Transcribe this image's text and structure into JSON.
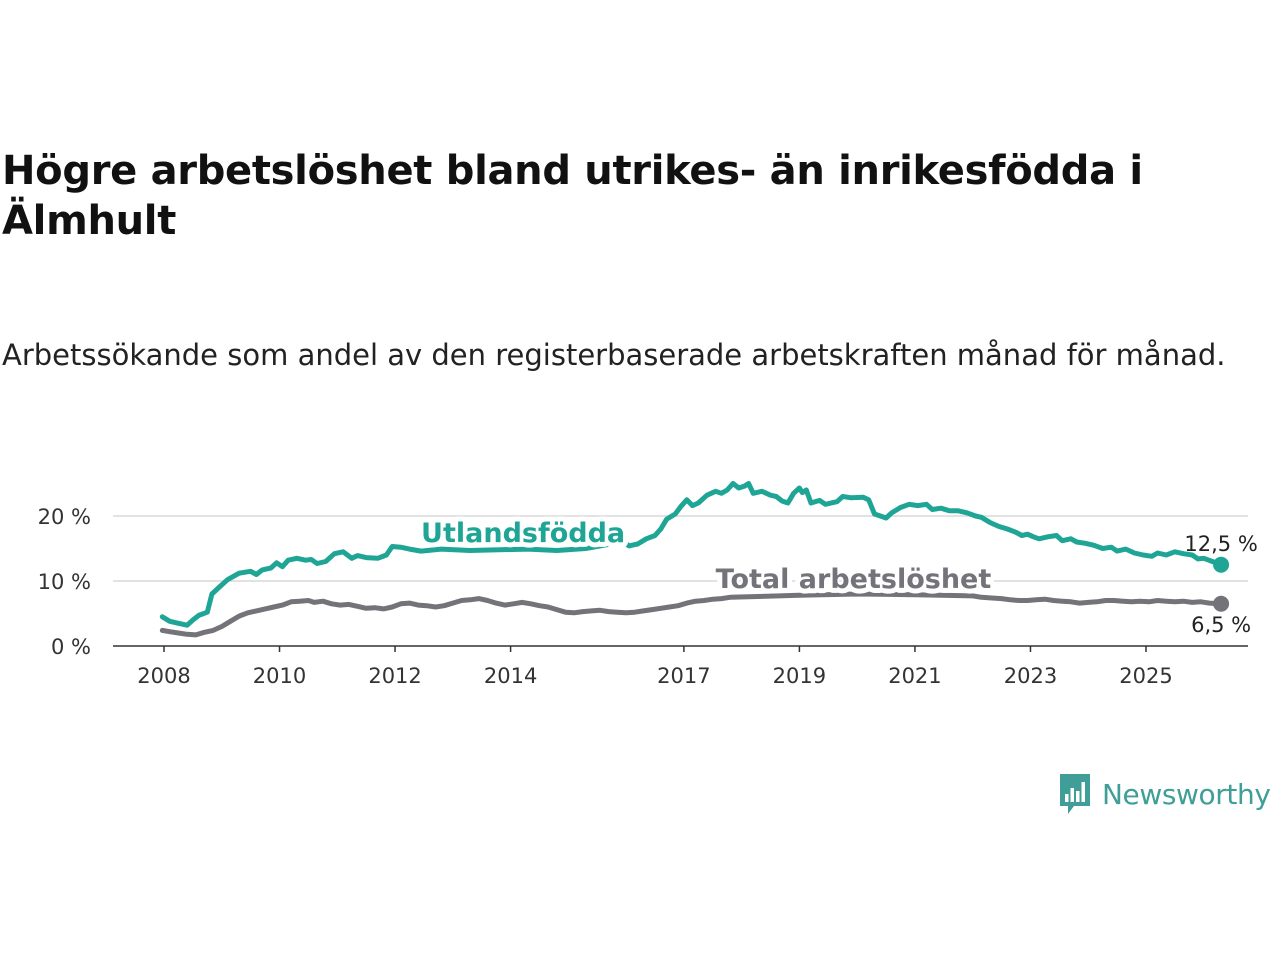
{
  "title": "Högre arbetslöshet bland utrikes- än inrikesfödda i Älmhult",
  "subtitle": "Arbetssökande som andel av den registerbaserade arbetskraften månad för månad.",
  "logo": {
    "text": "Newsworthy",
    "icon": "newsworthy-bar-chart-icon",
    "color": "#3f9e97"
  },
  "chart_data": {
    "type": "line",
    "ylim": [
      0,
      25
    ],
    "xlim": [
      2007.7,
      2026.0
    ],
    "y_ticks": [
      {
        "value": 0,
        "label": "0 %"
      },
      {
        "value": 10,
        "label": "10 %"
      },
      {
        "value": 20,
        "label": "20 %"
      }
    ],
    "x_ticks": [
      {
        "value": 2008,
        "label": "2008"
      },
      {
        "value": 2010,
        "label": "2010"
      },
      {
        "value": 2012,
        "label": "2012"
      },
      {
        "value": 2014,
        "label": "2014"
      },
      {
        "value": 2017,
        "label": "2017"
      },
      {
        "value": 2019,
        "label": "2019"
      },
      {
        "value": 2021,
        "label": "2021"
      },
      {
        "value": 2023,
        "label": "2023"
      },
      {
        "value": 2025,
        "label": "2025"
      }
    ],
    "grid": true,
    "series": [
      {
        "name": "Utlandsfödda",
        "color": "#1fa596",
        "end_label": "12,5 %",
        "points": [
          [
            2007.97,
            4.5
          ],
          [
            2008.1,
            3.8
          ],
          [
            2008.25,
            3.5
          ],
          [
            2008.4,
            3.2
          ],
          [
            2008.5,
            4.0
          ],
          [
            2008.6,
            4.7
          ],
          [
            2008.75,
            5.2
          ],
          [
            2008.83,
            8.0
          ],
          [
            2008.95,
            9.0
          ],
          [
            2009.1,
            10.2
          ],
          [
            2009.3,
            11.2
          ],
          [
            2009.5,
            11.5
          ],
          [
            2009.6,
            11.0
          ],
          [
            2009.7,
            11.7
          ],
          [
            2009.85,
            12.0
          ],
          [
            2009.95,
            12.8
          ],
          [
            2010.05,
            12.2
          ],
          [
            2010.15,
            13.2
          ],
          [
            2010.3,
            13.5
          ],
          [
            2010.45,
            13.2
          ],
          [
            2010.55,
            13.3
          ],
          [
            2010.65,
            12.7
          ],
          [
            2010.8,
            13.0
          ],
          [
            2010.95,
            14.2
          ],
          [
            2011.1,
            14.5
          ],
          [
            2011.25,
            13.5
          ],
          [
            2011.35,
            13.9
          ],
          [
            2011.5,
            13.6
          ],
          [
            2011.7,
            13.5
          ],
          [
            2011.85,
            14.0
          ],
          [
            2011.95,
            15.3
          ],
          [
            2012.1,
            15.2
          ],
          [
            2012.25,
            14.9
          ],
          [
            2012.45,
            14.6
          ],
          [
            2012.8,
            14.9
          ],
          [
            2013.3,
            14.7
          ],
          [
            2013.8,
            14.8
          ],
          [
            2014.3,
            14.9
          ],
          [
            2014.8,
            14.7
          ],
          [
            2015.3,
            15.0
          ],
          [
            2015.8,
            15.8
          ],
          [
            2015.95,
            16.1
          ],
          [
            2016.05,
            15.4
          ],
          [
            2016.2,
            15.7
          ],
          [
            2016.35,
            16.5
          ],
          [
            2016.5,
            17.0
          ],
          [
            2016.6,
            18.0
          ],
          [
            2016.7,
            19.5
          ],
          [
            2016.85,
            20.3
          ],
          [
            2016.95,
            21.5
          ],
          [
            2017.05,
            22.5
          ],
          [
            2017.15,
            21.6
          ],
          [
            2017.25,
            22.0
          ],
          [
            2017.4,
            23.2
          ],
          [
            2017.55,
            23.8
          ],
          [
            2017.65,
            23.5
          ],
          [
            2017.75,
            24.0
          ],
          [
            2017.85,
            25.0
          ],
          [
            2017.95,
            24.3
          ],
          [
            2018.05,
            24.6
          ],
          [
            2018.12,
            25.0
          ],
          [
            2018.2,
            23.5
          ],
          [
            2018.35,
            23.8
          ],
          [
            2018.5,
            23.2
          ],
          [
            2018.6,
            23.0
          ],
          [
            2018.7,
            22.3
          ],
          [
            2018.8,
            22.0
          ],
          [
            2018.9,
            23.5
          ],
          [
            2019.0,
            24.3
          ],
          [
            2019.05,
            23.6
          ],
          [
            2019.12,
            24.0
          ],
          [
            2019.2,
            22.0
          ],
          [
            2019.35,
            22.4
          ],
          [
            2019.45,
            21.8
          ],
          [
            2019.65,
            22.2
          ],
          [
            2019.75,
            23.0
          ],
          [
            2019.9,
            22.8
          ],
          [
            2020.1,
            22.9
          ],
          [
            2020.2,
            22.5
          ],
          [
            2020.3,
            20.3
          ],
          [
            2020.4,
            20.0
          ],
          [
            2020.5,
            19.7
          ],
          [
            2020.6,
            20.5
          ],
          [
            2020.75,
            21.3
          ],
          [
            2020.9,
            21.8
          ],
          [
            2021.05,
            21.6
          ],
          [
            2021.2,
            21.8
          ],
          [
            2021.3,
            21.0
          ],
          [
            2021.45,
            21.2
          ],
          [
            2021.6,
            20.8
          ],
          [
            2021.75,
            20.8
          ],
          [
            2021.9,
            20.5
          ],
          [
            2022.05,
            20.0
          ],
          [
            2022.15,
            19.8
          ],
          [
            2022.3,
            19.0
          ],
          [
            2022.45,
            18.4
          ],
          [
            2022.6,
            18.0
          ],
          [
            2022.75,
            17.5
          ],
          [
            2022.85,
            17.0
          ],
          [
            2022.95,
            17.2
          ],
          [
            2023.05,
            16.8
          ],
          [
            2023.15,
            16.5
          ],
          [
            2023.3,
            16.8
          ],
          [
            2023.45,
            17.0
          ],
          [
            2023.55,
            16.2
          ],
          [
            2023.7,
            16.5
          ],
          [
            2023.8,
            16.0
          ],
          [
            2023.95,
            15.8
          ],
          [
            2024.1,
            15.5
          ],
          [
            2024.25,
            15.0
          ],
          [
            2024.4,
            15.2
          ],
          [
            2024.5,
            14.6
          ],
          [
            2024.65,
            14.9
          ],
          [
            2024.8,
            14.3
          ],
          [
            2024.95,
            14.0
          ],
          [
            2025.1,
            13.8
          ],
          [
            2025.2,
            14.3
          ],
          [
            2025.35,
            14.0
          ],
          [
            2025.5,
            14.5
          ],
          [
            2025.65,
            14.2
          ],
          [
            2025.8,
            14.0
          ],
          [
            2025.9,
            13.4
          ],
          [
            2026.0,
            13.5
          ],
          [
            2026.15,
            13.0
          ],
          [
            2026.3,
            12.5
          ]
        ],
        "label": {
          "text": "Utlandsfödda",
          "x": 2012.45,
          "y": 16.0
        }
      },
      {
        "name": "Total arbetslöshet",
        "color": "#74737a",
        "end_label": "6,5 %",
        "points": [
          [
            2007.97,
            2.4
          ],
          [
            2008.1,
            2.2
          ],
          [
            2008.25,
            2.0
          ],
          [
            2008.4,
            1.8
          ],
          [
            2008.55,
            1.7
          ],
          [
            2008.7,
            2.1
          ],
          [
            2008.85,
            2.4
          ],
          [
            2009.0,
            3.0
          ],
          [
            2009.15,
            3.8
          ],
          [
            2009.3,
            4.6
          ],
          [
            2009.45,
            5.1
          ],
          [
            2009.6,
            5.4
          ],
          [
            2009.75,
            5.7
          ],
          [
            2009.9,
            6.0
          ],
          [
            2010.05,
            6.3
          ],
          [
            2010.2,
            6.8
          ],
          [
            2010.35,
            6.9
          ],
          [
            2010.5,
            7.0
          ],
          [
            2010.6,
            6.7
          ],
          [
            2010.75,
            6.9
          ],
          [
            2010.9,
            6.5
          ],
          [
            2011.05,
            6.3
          ],
          [
            2011.2,
            6.4
          ],
          [
            2011.35,
            6.1
          ],
          [
            2011.5,
            5.8
          ],
          [
            2011.65,
            5.9
          ],
          [
            2011.8,
            5.7
          ],
          [
            2011.95,
            6.0
          ],
          [
            2012.1,
            6.5
          ],
          [
            2012.25,
            6.6
          ],
          [
            2012.4,
            6.3
          ],
          [
            2012.55,
            6.2
          ],
          [
            2012.7,
            6.0
          ],
          [
            2012.85,
            6.2
          ],
          [
            2013.0,
            6.6
          ],
          [
            2013.15,
            7.0
          ],
          [
            2013.3,
            7.1
          ],
          [
            2013.45,
            7.3
          ],
          [
            2013.6,
            7.0
          ],
          [
            2013.75,
            6.6
          ],
          [
            2013.9,
            6.3
          ],
          [
            2014.05,
            6.5
          ],
          [
            2014.2,
            6.7
          ],
          [
            2014.35,
            6.5
          ],
          [
            2014.5,
            6.2
          ],
          [
            2014.65,
            6.0
          ],
          [
            2014.8,
            5.6
          ],
          [
            2014.95,
            5.2
          ],
          [
            2015.1,
            5.1
          ],
          [
            2015.25,
            5.3
          ],
          [
            2015.4,
            5.4
          ],
          [
            2015.55,
            5.5
          ],
          [
            2015.7,
            5.3
          ],
          [
            2015.85,
            5.2
          ],
          [
            2016.0,
            5.1
          ],
          [
            2016.15,
            5.2
          ],
          [
            2016.3,
            5.4
          ],
          [
            2016.45,
            5.6
          ],
          [
            2016.6,
            5.8
          ],
          [
            2016.75,
            6.0
          ],
          [
            2016.9,
            6.2
          ],
          [
            2017.05,
            6.6
          ],
          [
            2017.2,
            6.9
          ],
          [
            2017.35,
            7.0
          ],
          [
            2017.5,
            7.2
          ],
          [
            2017.65,
            7.3
          ],
          [
            2017.8,
            7.5
          ],
          [
            2018.2,
            7.6
          ],
          [
            2019.0,
            7.8
          ],
          [
            2020.0,
            8.0
          ],
          [
            2021.0,
            7.9
          ],
          [
            2022.0,
            7.7
          ],
          [
            2022.15,
            7.5
          ],
          [
            2022.3,
            7.4
          ],
          [
            2022.5,
            7.3
          ],
          [
            2022.65,
            7.1
          ],
          [
            2022.8,
            7.0
          ],
          [
            2022.95,
            7.0
          ],
          [
            2023.1,
            7.1
          ],
          [
            2023.25,
            7.2
          ],
          [
            2023.4,
            7.0
          ],
          [
            2023.55,
            6.9
          ],
          [
            2023.7,
            6.8
          ],
          [
            2023.85,
            6.6
          ],
          [
            2024.0,
            6.7
          ],
          [
            2024.15,
            6.8
          ],
          [
            2024.3,
            7.0
          ],
          [
            2024.45,
            7.0
          ],
          [
            2024.6,
            6.9
          ],
          [
            2024.75,
            6.8
          ],
          [
            2024.9,
            6.9
          ],
          [
            2025.05,
            6.8
          ],
          [
            2025.2,
            7.0
          ],
          [
            2025.35,
            6.9
          ],
          [
            2025.5,
            6.8
          ],
          [
            2025.65,
            6.9
          ],
          [
            2025.8,
            6.7
          ],
          [
            2025.95,
            6.8
          ],
          [
            2026.1,
            6.6
          ],
          [
            2026.3,
            6.5
          ]
        ],
        "label": {
          "text": "Total arbetslöshet",
          "x": 2017.55,
          "y": 8.9
        }
      }
    ]
  }
}
